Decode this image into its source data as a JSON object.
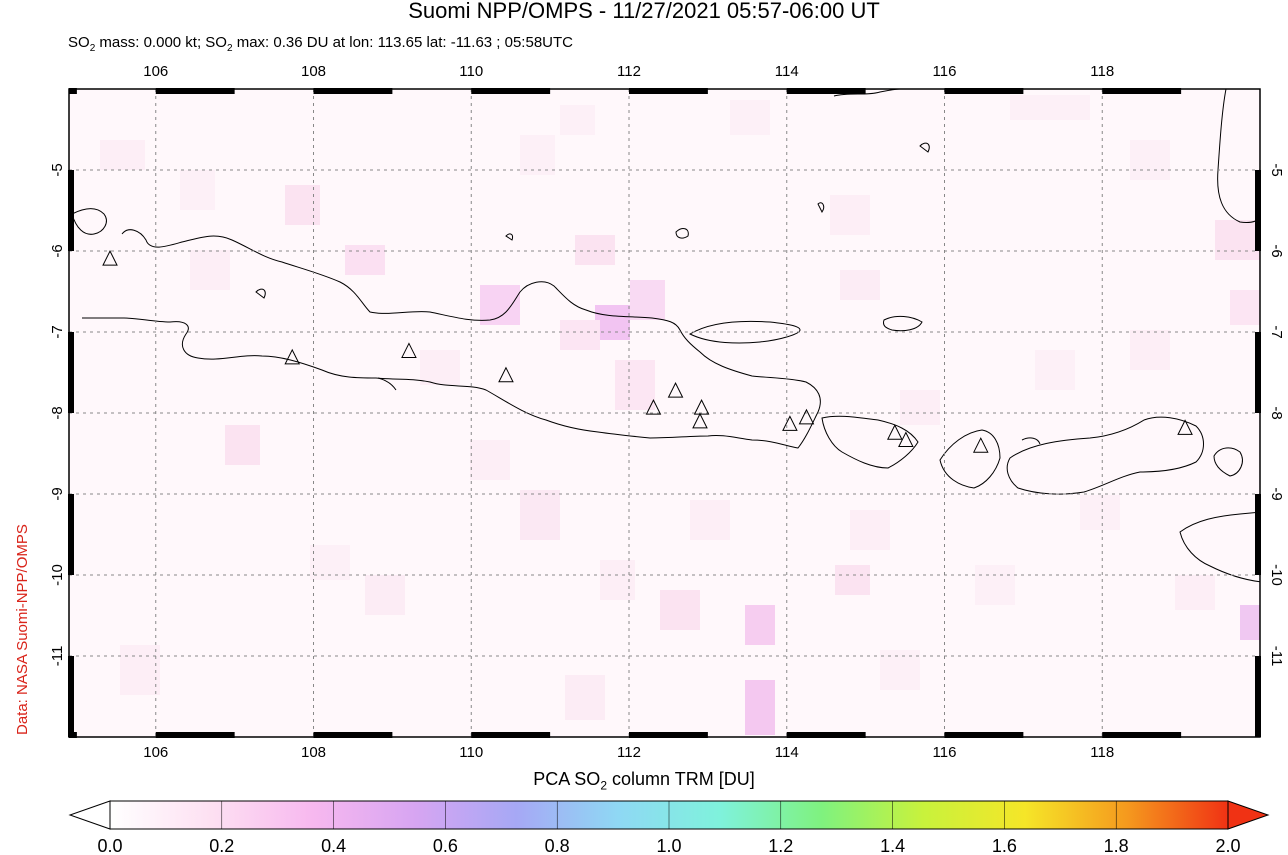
{
  "header": {
    "title": "Suomi NPP/OMPS - 11/27/2021 05:57-06:00 UT",
    "subtitle_prefix": "SO",
    "subtitle_sub1": "2",
    "subtitle_mid": " mass: 0.000 kt; SO",
    "subtitle_sub2": "2",
    "subtitle_rest": " max: 0.36 DU at lon: 113.65 lat: -11.63 ; 05:58UTC"
  },
  "credit": "Data: NASA Suomi-NPP/OMPS",
  "map": {
    "lon_range": [
      104.9,
      120.0
    ],
    "lat_range": [
      -12.0,
      -4.0
    ],
    "lon_ticks": [
      "106",
      "108",
      "110",
      "112",
      "114",
      "116",
      "118"
    ],
    "lon_tick_values": [
      106,
      108,
      110,
      112,
      114,
      116,
      118
    ],
    "lat_ticks": [
      "-5",
      "-6",
      "-7",
      "-8",
      "-9",
      "-10",
      "-11"
    ],
    "lat_tick_values": [
      -5,
      -6,
      -7,
      -8,
      -9,
      -10,
      -11
    ],
    "grid": true,
    "volcano_symbol": "triangle-icon",
    "volcanoes": [
      {
        "lon": 105.42,
        "lat": -6.1
      },
      {
        "lon": 107.73,
        "lat": -7.32
      },
      {
        "lon": 109.21,
        "lat": -7.24
      },
      {
        "lon": 110.44,
        "lat": -7.54
      },
      {
        "lon": 112.31,
        "lat": -7.94
      },
      {
        "lon": 112.59,
        "lat": -7.73
      },
      {
        "lon": 112.92,
        "lat": -7.94
      },
      {
        "lon": 112.9,
        "lat": -8.11
      },
      {
        "lon": 114.04,
        "lat": -8.14
      },
      {
        "lon": 114.25,
        "lat": -8.06
      },
      {
        "lon": 115.37,
        "lat": -8.25
      },
      {
        "lon": 115.51,
        "lat": -8.34
      },
      {
        "lon": 116.46,
        "lat": -8.41
      },
      {
        "lon": 119.05,
        "lat": -8.19
      }
    ]
  },
  "colorbar": {
    "title_prefix": "PCA SO",
    "title_sub": "2",
    "title_rest": " column TRM [DU]",
    "ticks": [
      "0.0",
      "0.2",
      "0.4",
      "0.6",
      "0.8",
      "1.0",
      "1.2",
      "1.4",
      "1.6",
      "1.8",
      "2.0"
    ],
    "range": [
      0.0,
      2.0
    ],
    "colors": [
      "#ffffff",
      "#fde0f2",
      "#f7b8ef",
      "#d7a5f2",
      "#a6a8f5",
      "#8fd8f4",
      "#7ff2dc",
      "#7ff27f",
      "#c8f23c",
      "#f5e628",
      "#f59a1e",
      "#f03214"
    ]
  }
}
